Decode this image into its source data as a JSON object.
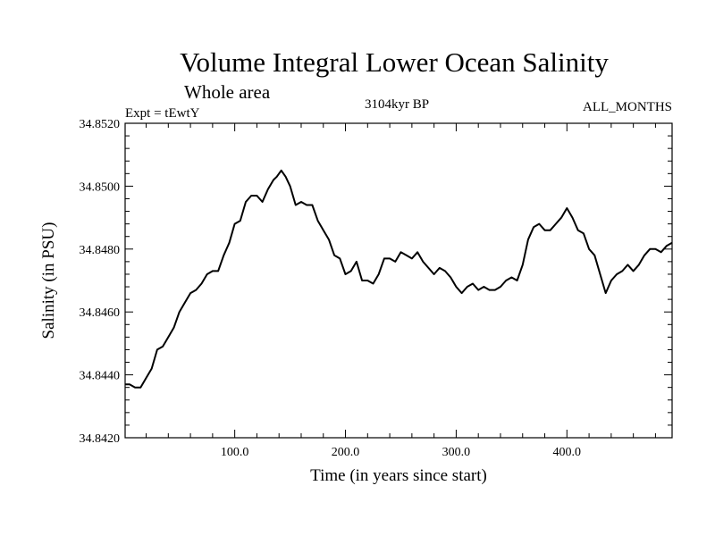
{
  "chart_data": {
    "type": "line",
    "title": "Volume Integral Lower Ocean Salinity",
    "subtitle": "Whole area",
    "expt_label": "Expt = tEwtY",
    "center_label": "3104kyr BP",
    "right_label": "ALL_MONTHS",
    "xlabel": "Time (in years since start)",
    "ylabel": "Salinity (in PSU)",
    "xlim": [
      1,
      495
    ],
    "ylim": [
      34.842,
      34.852
    ],
    "x_ticks": [
      {
        "value": 100,
        "label": "100.0"
      },
      {
        "value": 200,
        "label": "200.0"
      },
      {
        "value": 300,
        "label": "300.0"
      },
      {
        "value": 400,
        "label": "400.0"
      }
    ],
    "y_ticks": [
      {
        "value": 34.842,
        "label": "34.8420"
      },
      {
        "value": 34.844,
        "label": "34.8440"
      },
      {
        "value": 34.846,
        "label": "34.8460"
      },
      {
        "value": 34.848,
        "label": "34.8480"
      },
      {
        "value": 34.85,
        "label": "34.8500"
      },
      {
        "value": 34.852,
        "label": "34.8520"
      }
    ],
    "series": [
      {
        "name": "salinity",
        "color": "#000000",
        "x": [
          1,
          5,
          10,
          15,
          20,
          25,
          30,
          35,
          40,
          45,
          50,
          55,
          60,
          65,
          70,
          75,
          80,
          85,
          90,
          95,
          100,
          105,
          110,
          115,
          120,
          125,
          130,
          135,
          138,
          142,
          146,
          150,
          155,
          160,
          165,
          170,
          175,
          180,
          185,
          190,
          195,
          200,
          205,
          210,
          215,
          220,
          225,
          230,
          235,
          240,
          245,
          250,
          255,
          260,
          265,
          270,
          275,
          280,
          285,
          290,
          295,
          300,
          305,
          310,
          315,
          320,
          325,
          330,
          335,
          340,
          345,
          350,
          355,
          360,
          365,
          370,
          375,
          380,
          385,
          390,
          395,
          400,
          405,
          410,
          415,
          420,
          425,
          430,
          435,
          440,
          445,
          450,
          455,
          460,
          465,
          470,
          475,
          480,
          485,
          490,
          495
        ],
        "values": [
          34.8437,
          34.8437,
          34.8436,
          34.8436,
          34.8439,
          34.8442,
          34.8448,
          34.8449,
          34.8452,
          34.8455,
          34.846,
          34.8463,
          34.8466,
          34.8467,
          34.8469,
          34.8472,
          34.8473,
          34.8473,
          34.8478,
          34.8482,
          34.8488,
          34.8489,
          34.8495,
          34.8497,
          34.8497,
          34.8495,
          34.8499,
          34.8502,
          34.8503,
          34.8505,
          34.8503,
          34.85,
          34.8494,
          34.8495,
          34.8494,
          34.8494,
          34.8489,
          34.8486,
          34.8483,
          34.8478,
          34.8477,
          34.8472,
          34.8473,
          34.8476,
          34.847,
          34.847,
          34.8469,
          34.8472,
          34.8477,
          34.8477,
          34.8476,
          34.8479,
          34.8478,
          34.8477,
          34.8479,
          34.8476,
          34.8474,
          34.8472,
          34.8474,
          34.8473,
          34.8471,
          34.8468,
          34.8466,
          34.8468,
          34.8469,
          34.8467,
          34.8468,
          34.8467,
          34.8467,
          34.8468,
          34.847,
          34.8471,
          34.847,
          34.8475,
          34.8483,
          34.8487,
          34.8488,
          34.8486,
          34.8486,
          34.8488,
          34.849,
          34.8493,
          34.849,
          34.8486,
          34.8485,
          34.848,
          34.8478,
          34.8472,
          34.8466,
          34.847,
          34.8472,
          34.8473,
          34.8475,
          34.8473,
          34.8475,
          34.8478,
          34.848,
          34.848,
          34.8479,
          34.8481,
          34.8482
        ]
      }
    ]
  }
}
